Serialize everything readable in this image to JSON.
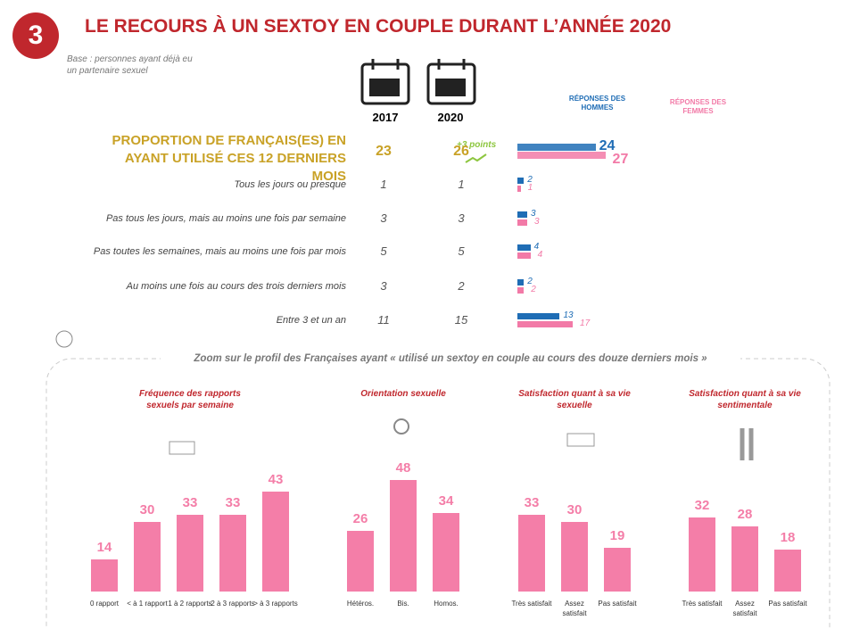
{
  "badge": "3",
  "title": "LE RECOURS À UN SEXTOY EN COUPLE DURANT L’ANNÉE 2020",
  "base_note": "Base : personnes ayant déjà eu un partenaire sexuel",
  "table": {
    "columns": [
      "2017",
      "2020"
    ],
    "change_label": "+3 points",
    "rows": [
      [
        23,
        26
      ],
      [
        1,
        1
      ],
      [
        3,
        3
      ],
      [
        5,
        5
      ],
      [
        3,
        2
      ],
      [
        11,
        15
      ]
    ]
  },
  "zoom_title": "Zoom sur le profil des Françaises ayant « utilisé un sextoy en couple au cours des douze derniers mois »",
  "chart_data": [
    {
      "type": "hbar",
      "categories": [
        "PROPORTION DE FRANÇAIS(ES) EN AYANT UTILISÉ CES 12 DERNIERS MOIS",
        "Tous les jours ou presque",
        "Pas tous les jours, mais au moins une fois par semaine",
        "Pas toutes les semaines, mais au moins une fois par mois",
        "Au moins une fois au cours des trois derniers mois",
        "Entre 3 et un an"
      ],
      "series": [
        {
          "name": "RÉPONSES DES HOMMES",
          "color": "#1f6db5",
          "values": [
            24,
            2,
            3,
            4,
            2,
            13
          ]
        },
        {
          "name": "RÉPONSES DES FEMMES",
          "color": "#f27aa7",
          "values": [
            27,
            1,
            3,
            4,
            2,
            17
          ]
        }
      ]
    },
    {
      "type": "bar",
      "title": "Fréquence des rapports sexuels par semaine",
      "color": "#f47ea8",
      "categories": [
        "0 rapport",
        "< à 1 rapport",
        "1 à 2 rapports",
        "2 à 3 rapports",
        "> à 3 rapports"
      ],
      "values": [
        14,
        30,
        33,
        33,
        43
      ]
    },
    {
      "type": "bar",
      "title": "Orientation sexuelle",
      "color": "#f47ea8",
      "categories": [
        "Hétéros.",
        "Bis.",
        "Homos."
      ],
      "values": [
        26,
        48,
        34
      ]
    },
    {
      "type": "bar",
      "title": "Satisfaction quant à sa vie sexuelle",
      "color": "#f47ea8",
      "categories": [
        "Très satisfait",
        "Assez satisfait",
        "Pas satisfait"
      ],
      "values": [
        33,
        30,
        19
      ]
    },
    {
      "type": "bar",
      "title": "Satisfaction quant à sa vie sentimentale",
      "color": "#f47ea8",
      "categories": [
        "Très satisfait",
        "Assez satisfait",
        "Pas satisfait"
      ],
      "values": [
        32,
        28,
        18
      ]
    }
  ]
}
